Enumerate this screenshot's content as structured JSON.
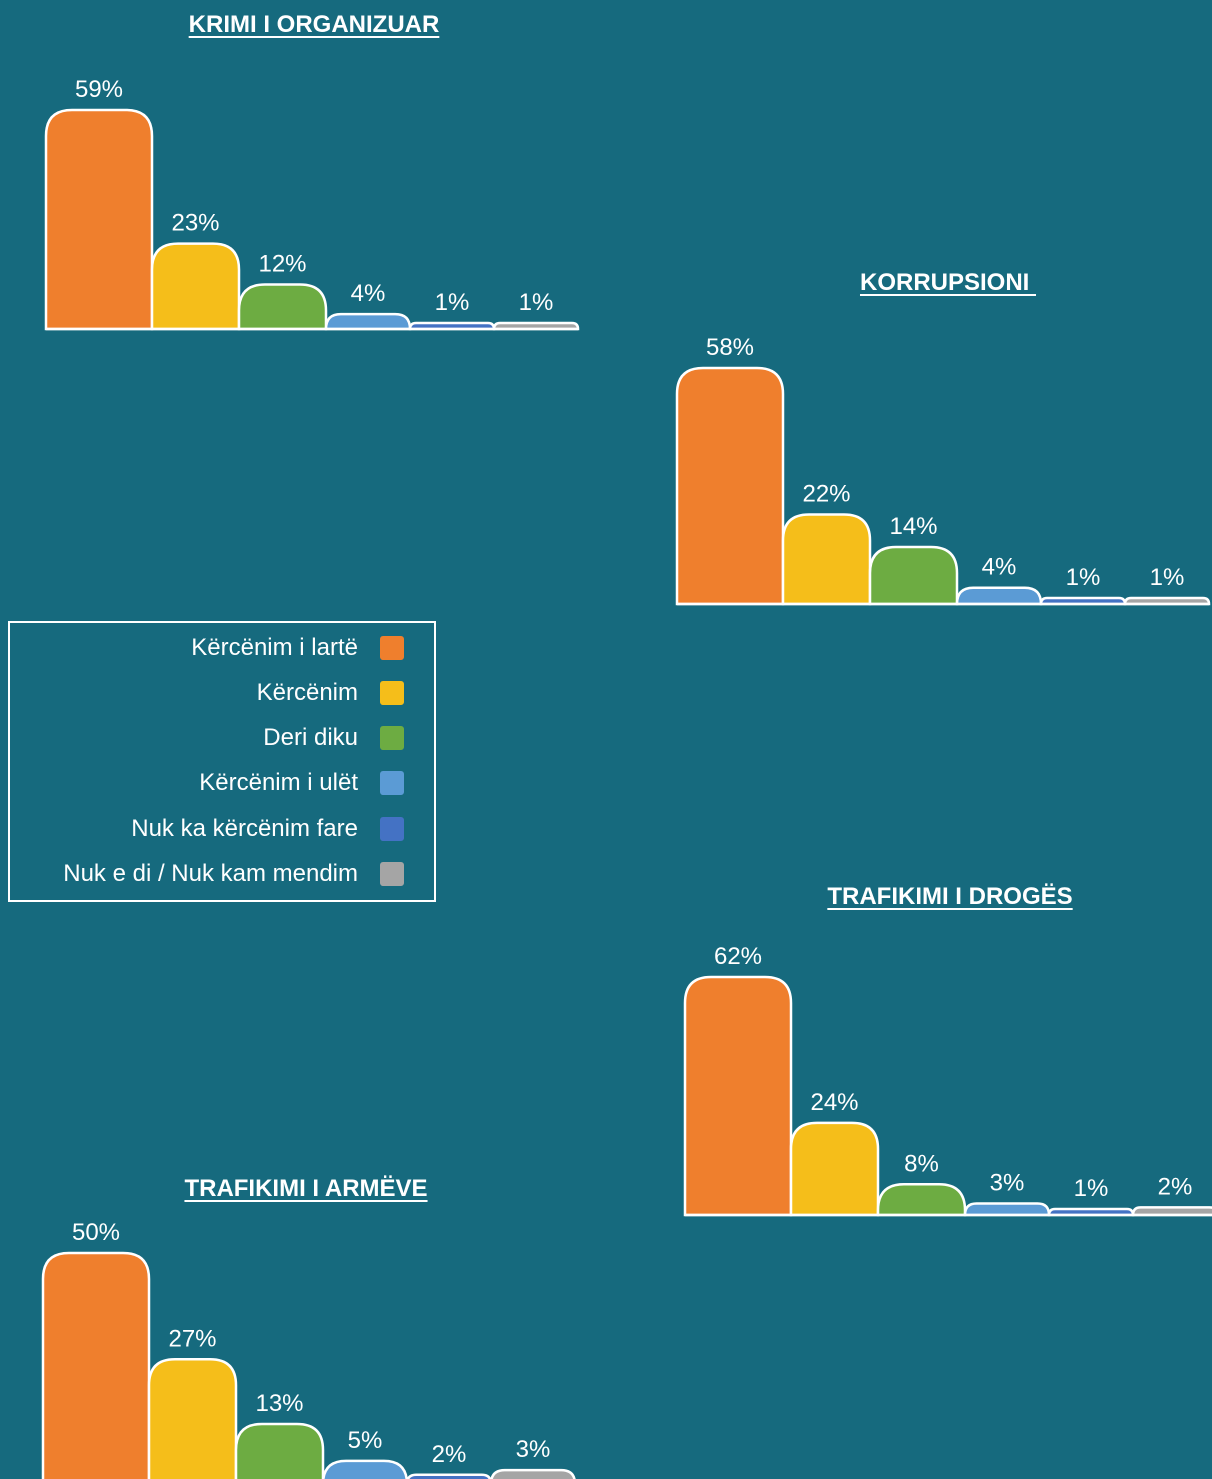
{
  "colors": {
    "background": "#166a7e",
    "series": [
      "#ef7f2d",
      "#f5be1a",
      "#6dac42",
      "#5b9bd5",
      "#4472c4",
      "#a5a5a5"
    ],
    "outline": "#ffffff"
  },
  "legend": {
    "items": [
      {
        "label": "Kërcënim i lartë",
        "color": "#ef7f2d"
      },
      {
        "label": "Kërcënim",
        "color": "#f5be1a"
      },
      {
        "label": "Deri diku",
        "color": "#6dac42"
      },
      {
        "label": "Kërcënim i ulët",
        "color": "#5b9bd5"
      },
      {
        "label": "Nuk ka kërcënim fare",
        "color": "#4472c4"
      },
      {
        "label": "Nuk e di / Nuk kam mendim",
        "color": "#a5a5a5"
      }
    ]
  },
  "chart_data": [
    {
      "type": "bar",
      "title": "KRIMI I ORGANIZUAR",
      "categories": [
        "Kërcënim i lartë",
        "Kërcënim",
        "Deri diku",
        "Kërcënim i ulët",
        "Nuk ka kërcënim fare",
        "Nuk e di / Nuk kam mendim"
      ],
      "values": [
        59,
        23,
        12,
        4,
        1,
        1
      ],
      "labels": [
        "59%",
        "23%",
        "12%",
        "4%",
        "1%",
        "1%"
      ],
      "unit": "%",
      "legend": "shared"
    },
    {
      "type": "bar",
      "title": "KORRUPSIONI ",
      "categories": [
        "Kërcënim i lartë",
        "Kërcënim",
        "Deri diku",
        "Kërcënim i ulët",
        "Nuk ka kërcënim fare",
        "Nuk e di / Nuk kam mendim"
      ],
      "values": [
        58,
        22,
        14,
        4,
        1,
        1
      ],
      "labels": [
        "58%",
        "22%",
        "14%",
        "4%",
        "1%",
        "1%"
      ],
      "unit": "%",
      "legend": "shared"
    },
    {
      "type": "bar",
      "title": "TRAFIKIMI I DROGËS",
      "categories": [
        "Kërcënim i lartë",
        "Kërcënim",
        "Deri diku",
        "Kërcënim i ulët",
        "Nuk ka kërcënim fare",
        "Nuk e di / Nuk kam mendim"
      ],
      "values": [
        62,
        24,
        8,
        3,
        1,
        2
      ],
      "labels": [
        "62%",
        "24%",
        "8%",
        "3%",
        "1%",
        "2%"
      ],
      "unit": "%",
      "legend": "shared"
    },
    {
      "type": "bar",
      "title": "TRAFIKIMI I ARMËVE",
      "categories": [
        "Kërcënim i lartë",
        "Kërcënim",
        "Deri diku",
        "Kërcënim i ulët",
        "Nuk ka kërcënim fare",
        "Nuk e di / Nuk kam mendim"
      ],
      "values": [
        50,
        27,
        13,
        5,
        2,
        3
      ],
      "labels": [
        "50%",
        "27%",
        "13%",
        "5%",
        "2%",
        "3%"
      ],
      "unit": "%",
      "legend": "shared"
    }
  ]
}
